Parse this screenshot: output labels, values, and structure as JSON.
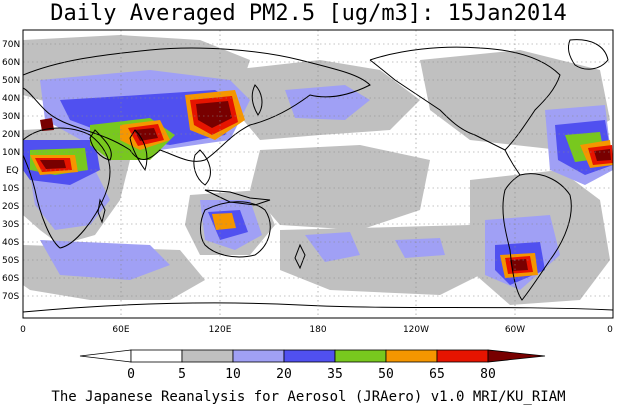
{
  "title": "Daily Averaged PM2.5 [ug/m3]: 15Jan2014",
  "latitude_labels": [
    "70N",
    "60N",
    "50N",
    "40N",
    "30N",
    "20N",
    "10N",
    "EQ",
    "10S",
    "20S",
    "30S",
    "40S",
    "50S",
    "60S",
    "70S"
  ],
  "longitude_labels": [
    "0",
    "60E",
    "120E",
    "180",
    "120W",
    "60W",
    "0"
  ],
  "colorbar": {
    "tick_labels": [
      "0",
      "5",
      "10",
      "20",
      "35",
      "50",
      "65",
      "80"
    ],
    "colors": [
      "#ffffff",
      "#c0c0c0",
      "#a0a0f5",
      "#5050f0",
      "#78c81e",
      "#f59600",
      "#e61400",
      "#780000"
    ]
  },
  "credit": "The Japanese Reanalysis for Aerosol (JRAero) v1.0 MRI/KU_RIAM"
}
